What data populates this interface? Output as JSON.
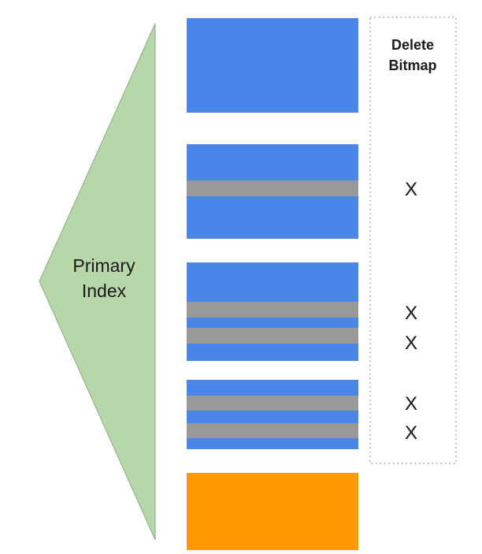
{
  "index": {
    "label_line1": "Primary",
    "label_line2": "Index",
    "fill_color": "#b7d7a8",
    "stroke_color": "#8aa888"
  },
  "bitmap": {
    "title_line1": "Delete",
    "title_line2": "Bitmap",
    "border_color": "#999999"
  },
  "colors": {
    "live_block": "#4a86e8",
    "deleted_row": "#999999",
    "new_block": "#ff9900"
  },
  "blocks": [
    {
      "name": "block-1",
      "kind": "live",
      "marks": []
    },
    {
      "name": "block-2",
      "kind": "live",
      "marks": [
        "X"
      ]
    },
    {
      "name": "block-3",
      "kind": "live",
      "marks": [
        "X",
        "X"
      ]
    },
    {
      "name": "block-4",
      "kind": "live",
      "marks": [
        "X",
        "X"
      ]
    },
    {
      "name": "block-5",
      "kind": "new",
      "marks": []
    }
  ]
}
